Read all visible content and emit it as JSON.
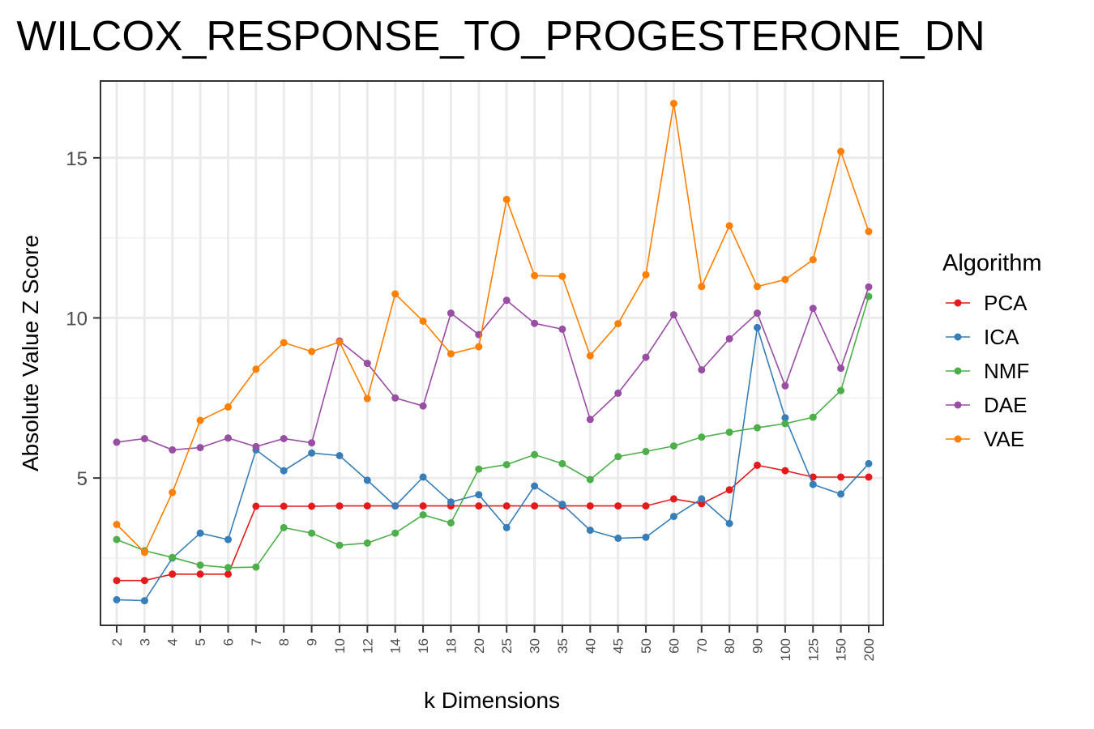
{
  "chart_data": {
    "type": "line",
    "title": "WILCOX_RESPONSE_TO_PROGESTERONE_DN",
    "xlabel": "k Dimensions",
    "ylabel": "Absolute Value Z Score",
    "ylim": [
      0.4,
      17.4
    ],
    "yticks": [
      5,
      10,
      15
    ],
    "grid": true,
    "legend_title": "Algorithm",
    "legend_position": "right",
    "categories": [
      "2",
      "3",
      "4",
      "5",
      "6",
      "7",
      "8",
      "9",
      "10",
      "12",
      "14",
      "16",
      "18",
      "20",
      "25",
      "30",
      "35",
      "40",
      "45",
      "50",
      "60",
      "70",
      "80",
      "90",
      "100",
      "125",
      "150",
      "200"
    ],
    "series": [
      {
        "name": "PCA",
        "color": "#e41a1c",
        "values": [
          1.8,
          1.8,
          2.0,
          2.0,
          2.0,
          4.12,
          4.12,
          4.12,
          4.13,
          4.13,
          4.13,
          4.13,
          4.13,
          4.13,
          4.13,
          4.13,
          4.13,
          4.13,
          4.13,
          4.13,
          4.35,
          4.2,
          4.63,
          5.4,
          5.23,
          5.03,
          5.03,
          5.03
        ]
      },
      {
        "name": "ICA",
        "color": "#377eb8",
        "values": [
          1.2,
          1.17,
          2.5,
          3.28,
          3.08,
          5.88,
          5.23,
          5.78,
          5.7,
          4.93,
          4.13,
          5.03,
          4.25,
          4.48,
          3.45,
          4.75,
          4.18,
          3.37,
          3.12,
          3.15,
          3.8,
          4.35,
          3.58,
          9.7,
          6.88,
          4.8,
          4.5,
          5.45
        ]
      },
      {
        "name": "NMF",
        "color": "#4daf4a",
        "values": [
          3.08,
          2.73,
          2.52,
          2.28,
          2.2,
          2.22,
          3.45,
          3.28,
          2.9,
          2.97,
          3.28,
          3.85,
          3.6,
          5.28,
          5.42,
          5.73,
          5.45,
          4.95,
          5.67,
          5.83,
          6.0,
          6.28,
          6.43,
          6.57,
          6.7,
          6.9,
          7.73,
          10.67
        ]
      },
      {
        "name": "DAE",
        "color": "#984ea3",
        "values": [
          6.12,
          6.23,
          5.88,
          5.95,
          6.25,
          5.98,
          6.23,
          6.1,
          9.28,
          8.58,
          7.5,
          7.25,
          10.15,
          9.48,
          10.55,
          9.83,
          9.65,
          6.83,
          7.65,
          8.77,
          10.1,
          8.38,
          9.35,
          10.15,
          7.88,
          10.3,
          8.43,
          10.97
        ]
      },
      {
        "name": "VAE",
        "color": "#ff7f00",
        "values": [
          3.55,
          2.68,
          4.55,
          6.8,
          7.22,
          8.4,
          9.23,
          8.95,
          9.25,
          7.48,
          10.75,
          9.9,
          8.88,
          9.1,
          13.7,
          11.32,
          11.3,
          8.82,
          9.82,
          11.35,
          16.7,
          10.98,
          12.88,
          10.98,
          11.2,
          11.82,
          15.2,
          12.7
        ]
      }
    ]
  }
}
